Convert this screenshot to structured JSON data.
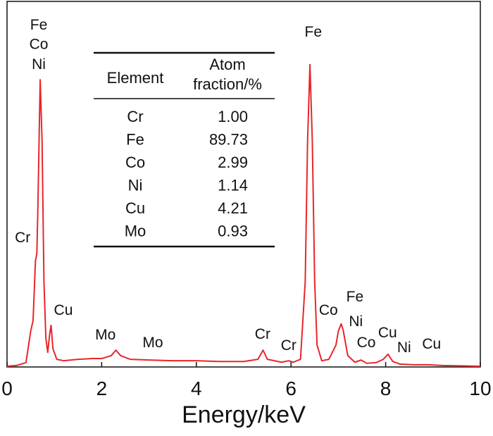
{
  "chart_data": {
    "type": "line",
    "x_label": "Energy/keV",
    "xlim": [
      0,
      10
    ],
    "ylim": [
      0,
      100
    ],
    "xticks": [
      0,
      2,
      4,
      6,
      8,
      10
    ],
    "series": [
      {
        "color": "#e8262a",
        "x": [
          0,
          0.2,
          0.4,
          0.5,
          0.55,
          0.6,
          0.63,
          0.65,
          0.7,
          0.74,
          0.78,
          0.82,
          0.86,
          0.9,
          0.93,
          0.97,
          1.05,
          1.2,
          1.5,
          1.8,
          2.0,
          2.2,
          2.3,
          2.4,
          2.6,
          3.0,
          3.5,
          4.0,
          4.5,
          5.0,
          5.3,
          5.41,
          5.5,
          5.8,
          5.95,
          6.05,
          6.2,
          6.3,
          6.35,
          6.4,
          6.45,
          6.5,
          6.55,
          6.65,
          6.8,
          6.95,
          7.0,
          7.06,
          7.1,
          7.2,
          7.35,
          7.48,
          7.6,
          7.8,
          7.95,
          8.05,
          8.15,
          8.3,
          8.6,
          8.9,
          9.2,
          10
        ],
        "values": [
          0.2,
          0.4,
          1.2,
          9.8,
          12.7,
          29,
          31,
          42.6,
          78.6,
          61.8,
          23.3,
          7.9,
          4.0,
          8.9,
          11.4,
          5.0,
          2.1,
          1.7,
          2.1,
          2.3,
          2.3,
          3.1,
          4.6,
          3.1,
          2.1,
          1.9,
          1.7,
          1.7,
          1.5,
          1.5,
          2.1,
          4.6,
          2.1,
          1.3,
          1.7,
          1.3,
          2.1,
          23.3,
          61.8,
          82.7,
          61.8,
          23.3,
          6.0,
          1.7,
          2.1,
          6.0,
          9.8,
          11.8,
          10.2,
          3.1,
          1.3,
          1.9,
          1.0,
          1.2,
          2.1,
          3.5,
          1.5,
          0.8,
          0.6,
          0.6,
          0.4,
          0.2
        ]
      }
    ],
    "annotations": [
      {
        "text": "Fe",
        "x": 0.67,
        "y": 92.3
      },
      {
        "text": "Co",
        "x": 0.67,
        "y": 87
      },
      {
        "text": "Ni",
        "x": 0.67,
        "y": 81.5
      },
      {
        "text": "Cr",
        "x": 0.33,
        "y": 34.1
      },
      {
        "text": "Cu",
        "x": 1.19,
        "y": 14.3
      },
      {
        "text": "Mo",
        "x": 2.08,
        "y": 7.5
      },
      {
        "text": "Mo",
        "x": 3.08,
        "y": 5.4
      },
      {
        "text": "Cr",
        "x": 5.4,
        "y": 7.7
      },
      {
        "text": "Cr",
        "x": 5.95,
        "y": 4.6
      },
      {
        "text": "Fe",
        "x": 6.47,
        "y": 90.4
      },
      {
        "text": "Co",
        "x": 6.79,
        "y": 14.3
      },
      {
        "text": "Fe",
        "x": 7.35,
        "y": 17.9
      },
      {
        "text": "Ni",
        "x": 7.37,
        "y": 11.2
      },
      {
        "text": "Co",
        "x": 7.59,
        "y": 5.4
      },
      {
        "text": "Cu",
        "x": 8.04,
        "y": 8.1
      },
      {
        "text": "Ni",
        "x": 8.39,
        "y": 4.0
      },
      {
        "text": "Cu",
        "x": 8.97,
        "y": 5.0
      }
    ],
    "table": {
      "columns": [
        "Element",
        "Atom fraction/%"
      ],
      "rows": [
        [
          "Cr",
          "1.00"
        ],
        [
          "Fe",
          "89.73"
        ],
        [
          "Co",
          "2.99"
        ],
        [
          "Ni",
          "1.14"
        ],
        [
          "Cu",
          "4.21"
        ],
        [
          "Mo",
          "0.93"
        ]
      ]
    }
  }
}
